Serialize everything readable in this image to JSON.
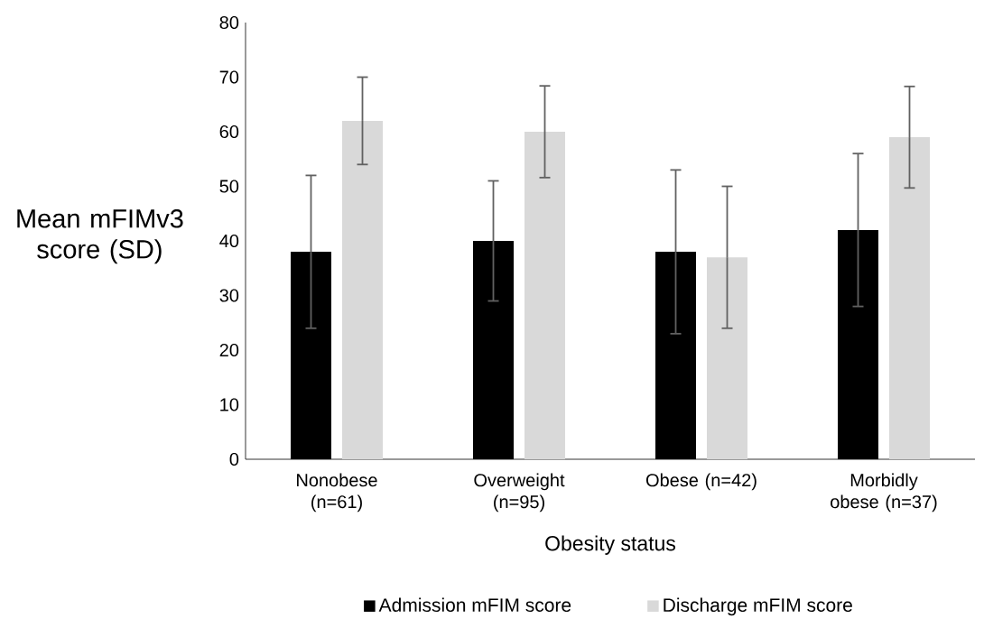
{
  "chart_data": {
    "type": "bar",
    "xlabel": "Obesity status",
    "ylabel": "Mean mFIMv3 score (SD)",
    "categories": [
      "Nonobese (n=61)",
      "Overweight (n=95)",
      "Obese (n=42)",
      "Morbidly obese (n=37)"
    ],
    "series": [
      {
        "name": "Admission mFIM score",
        "color": "#000000",
        "values": [
          38,
          40,
          38,
          42
        ],
        "errors": [
          14,
          11,
          15,
          14
        ]
      },
      {
        "name": "Discharge mFIM score",
        "color": "#d9d9d9",
        "values": [
          62,
          60,
          37,
          59
        ],
        "errors": [
          8,
          8.4,
          13,
          9.3
        ]
      }
    ],
    "ylim": [
      0,
      80
    ],
    "yticks": [
      0,
      10,
      20,
      30,
      40,
      50,
      60,
      70,
      80
    ],
    "grid": false,
    "legend": "bottom"
  }
}
